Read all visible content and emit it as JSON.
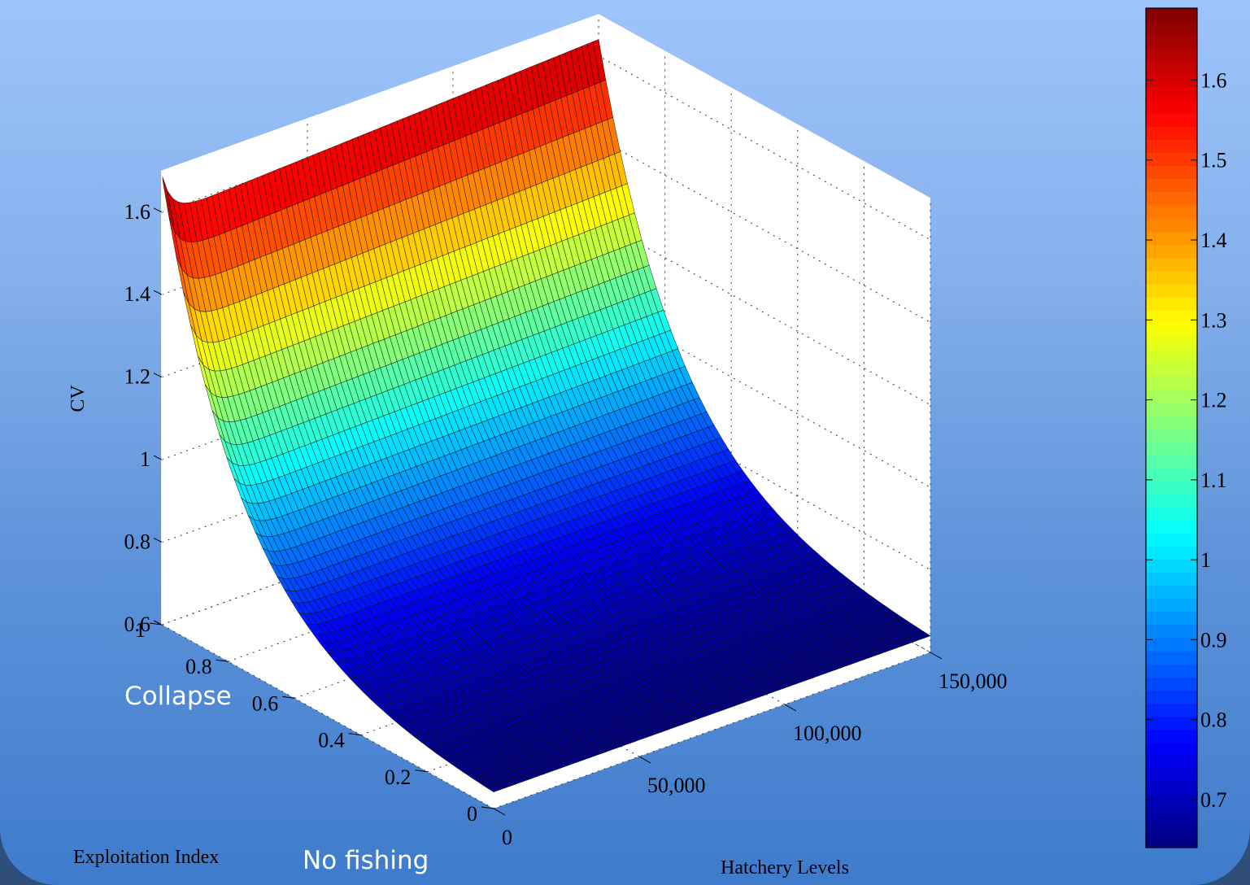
{
  "chart_data": {
    "type": "surface",
    "title": "",
    "zlabel": "CV",
    "xlabel": "Exploitation Index",
    "ylabel": "Hatchery Levels",
    "x_ticks": [
      "0",
      "0.2",
      "0.4",
      "0.6",
      "0.8",
      "1"
    ],
    "y_ticks": [
      "0",
      "50,000",
      "100,000",
      "150,000"
    ],
    "z_ticks": [
      "0.6",
      "0.8",
      "1",
      "1.2",
      "1.4",
      "1.6"
    ],
    "xlim": [
      0,
      1
    ],
    "ylim": [
      0,
      150000
    ],
    "zlim": [
      0.6,
      1.7
    ],
    "grid": true,
    "colormap": "jet",
    "colorbar": {
      "ticks": [
        "0.7",
        "0.8",
        "0.9",
        "1",
        "1.1",
        "1.2",
        "1.3",
        "1.4",
        "1.5",
        "1.6"
      ],
      "range": [
        0.64,
        1.69
      ]
    },
    "surface": {
      "z_at_x1_y0": 1.69,
      "z_at_x1_plateau": 1.59,
      "z_at_x1_y150000": 1.64,
      "z_at_x0": 0.64
    }
  },
  "annotations": {
    "collapse": "Collapse",
    "no_fishing": "No fishing"
  }
}
